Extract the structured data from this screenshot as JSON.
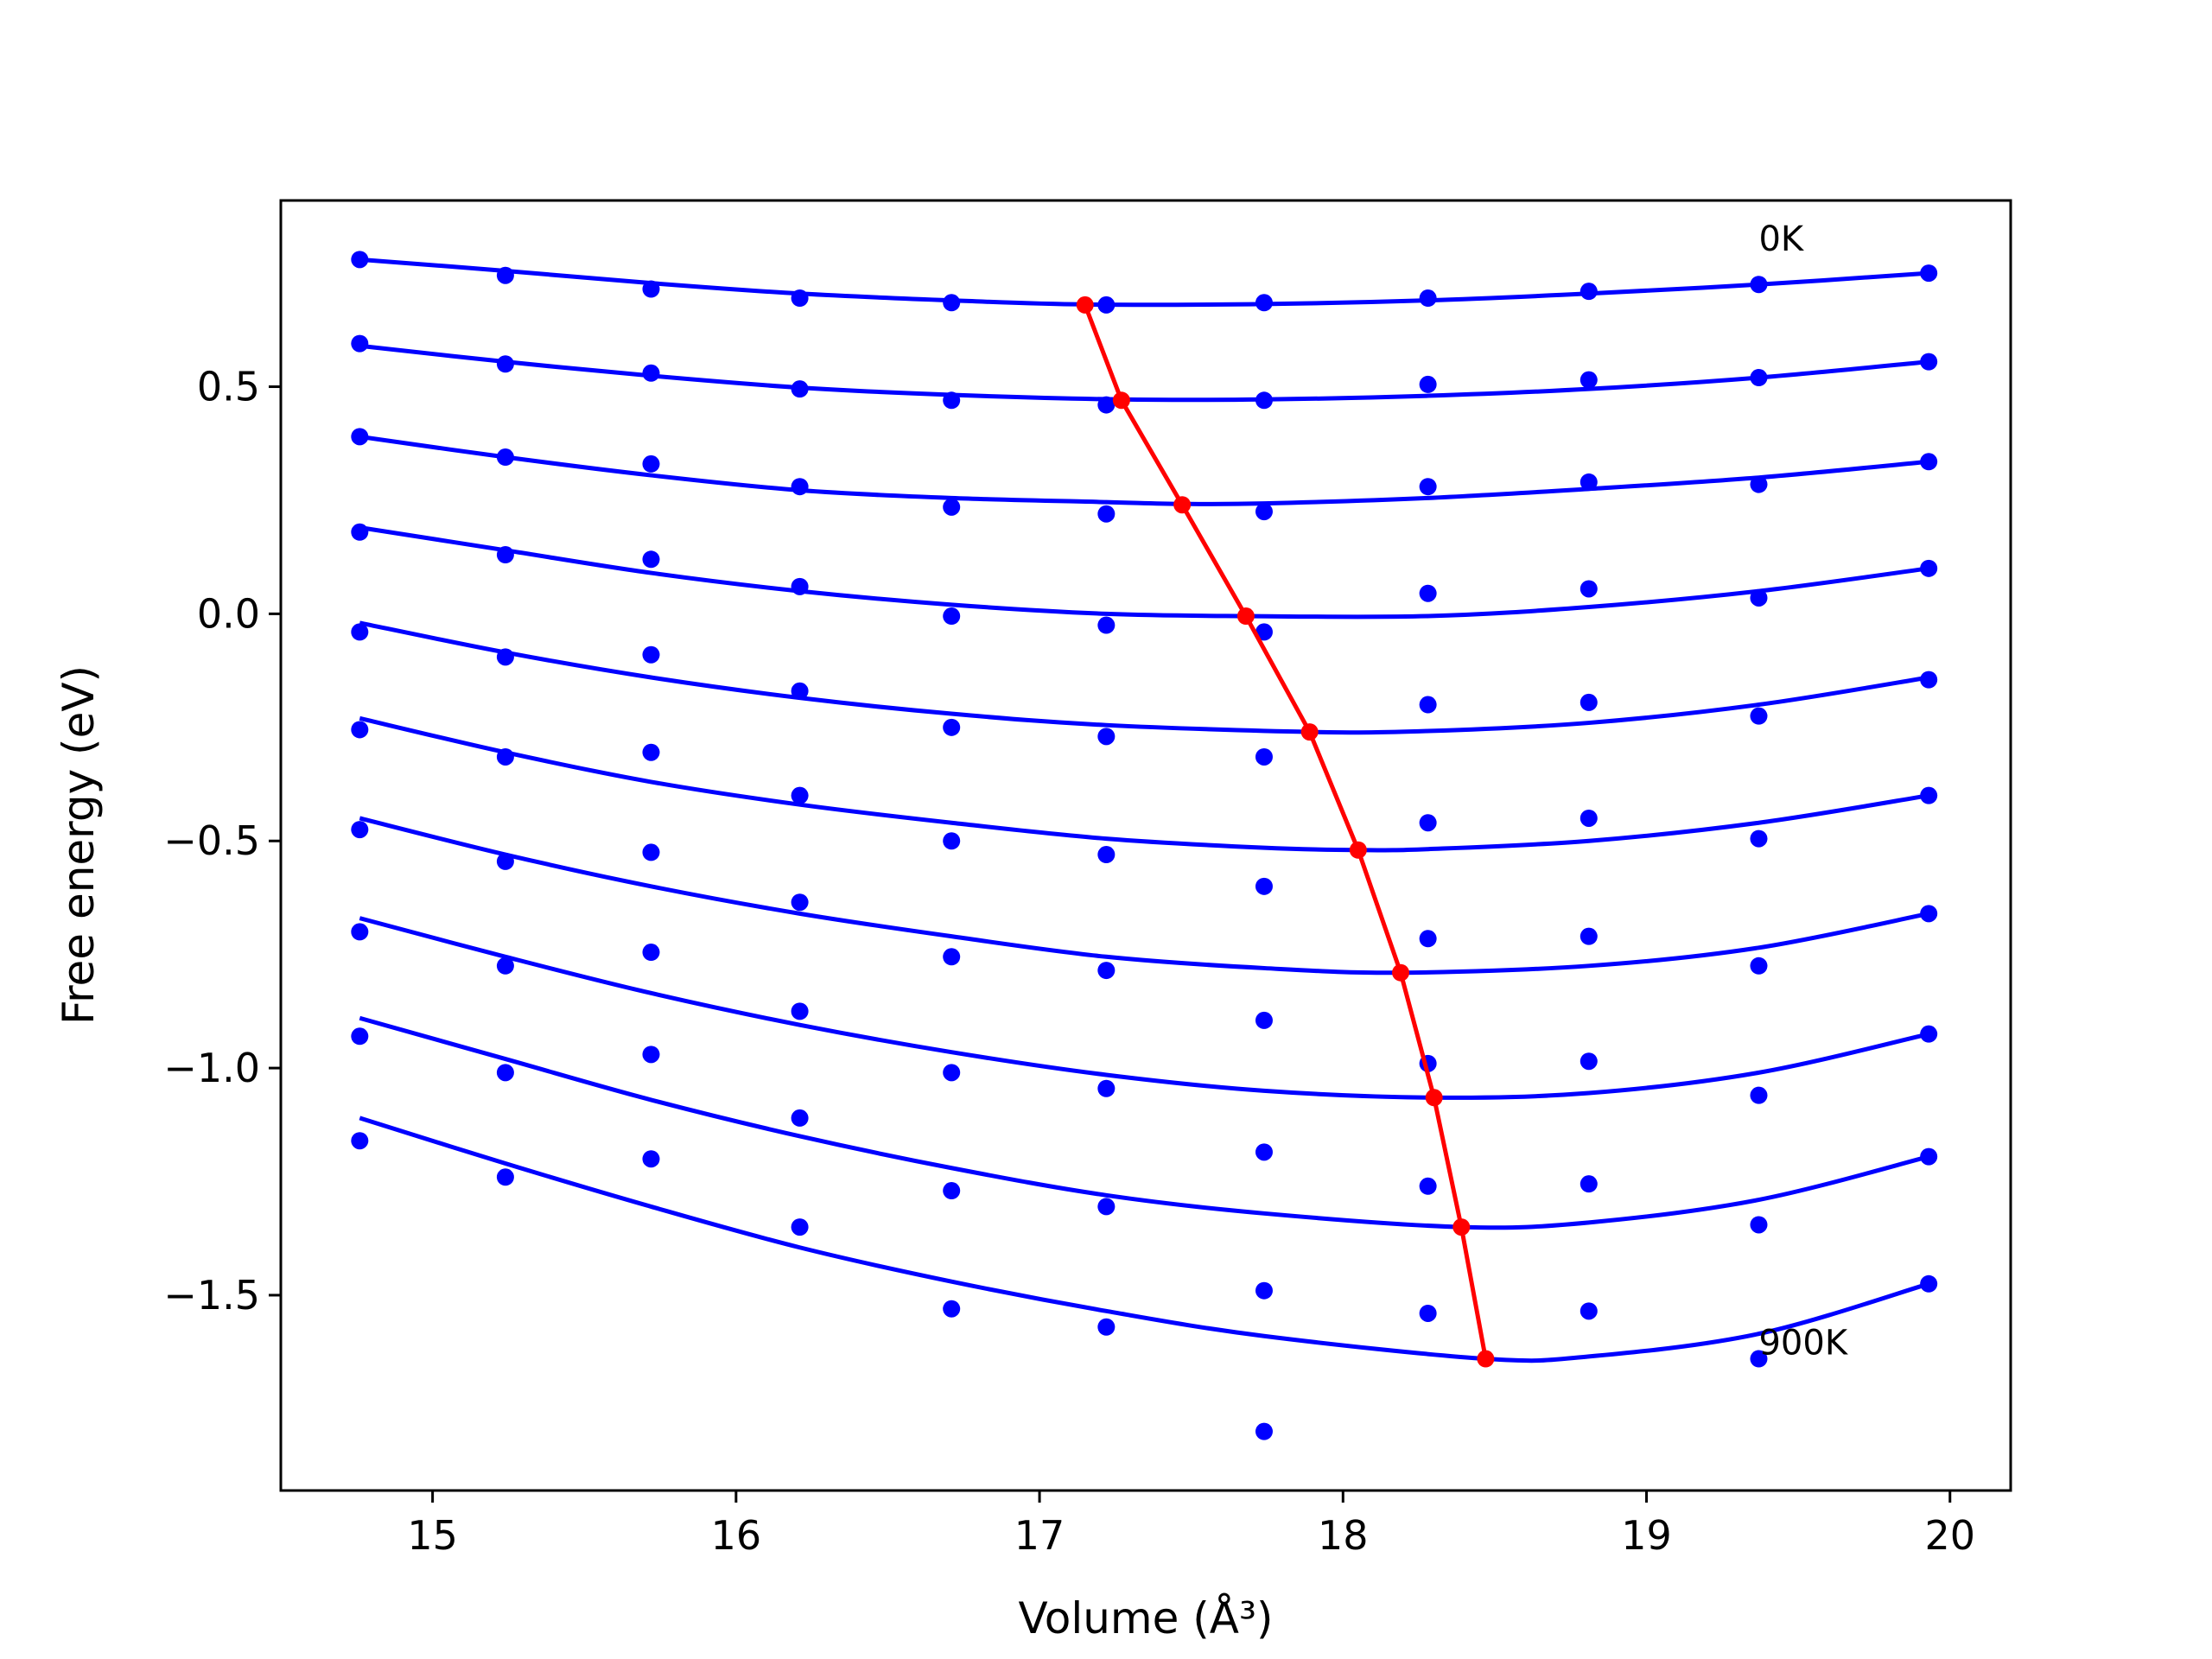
{
  "chart_data": {
    "type": "scatter",
    "title": "",
    "xlabel": "Volume (Å³)",
    "ylabel": "Free energy (eV)",
    "xlim": [
      14.5,
      20.2
    ],
    "ylim": [
      -1.93,
      0.91
    ],
    "xticks": [
      15,
      16,
      17,
      18,
      19,
      20
    ],
    "xtick_labels": [
      "15",
      "16",
      "17",
      "18",
      "19",
      "20"
    ],
    "yticks": [
      -1.5,
      -1.0,
      -0.5,
      0.0,
      0.5
    ],
    "ytick_labels": [
      "−1.5",
      "−1.0",
      "−0.5",
      "0.0",
      "0.5"
    ],
    "grid": false,
    "annotations": [
      {
        "text": "0K",
        "x": 19.37,
        "y": 0.8
      },
      {
        "text": "900K",
        "x": 19.37,
        "y": -1.63
      }
    ],
    "x": [
      14.76,
      15.24,
      15.72,
      16.21,
      16.71,
      17.22,
      17.74,
      18.28,
      18.81,
      19.37,
      19.93
    ],
    "series": [
      {
        "values": [
          0.78,
          0.745,
          0.715,
          0.695,
          0.685,
          0.68,
          0.685,
          0.695,
          0.71,
          0.725,
          0.75
        ],
        "fit": [
          [
            14.76,
            0.78
          ],
          [
            15.24,
            0.755
          ],
          [
            15.72,
            0.728
          ],
          [
            16.21,
            0.705
          ],
          [
            16.71,
            0.69
          ],
          [
            17.15,
            0.681
          ],
          [
            17.74,
            0.682
          ],
          [
            18.28,
            0.69
          ],
          [
            18.81,
            0.705
          ],
          [
            19.37,
            0.725
          ],
          [
            19.93,
            0.75
          ]
        ]
      },
      {
        "values": [
          0.595,
          0.55,
          0.53,
          0.495,
          0.47,
          0.46,
          0.47,
          0.505,
          0.515,
          0.52,
          0.555
        ],
        "fit": [
          [
            14.76,
            0.59
          ],
          [
            15.24,
            0.555
          ],
          [
            15.72,
            0.524
          ],
          [
            16.21,
            0.498
          ],
          [
            16.71,
            0.482
          ],
          [
            17.27,
            0.472
          ],
          [
            17.74,
            0.472
          ],
          [
            18.28,
            0.48
          ],
          [
            18.81,
            0.495
          ],
          [
            19.37,
            0.52
          ],
          [
            19.93,
            0.555
          ]
        ]
      },
      {
        "values": [
          0.39,
          0.345,
          0.33,
          0.28,
          0.235,
          0.22,
          0.225,
          0.28,
          0.29,
          0.285,
          0.335
        ],
        "fit": [
          [
            14.76,
            0.39
          ],
          [
            15.24,
            0.345
          ],
          [
            15.72,
            0.305
          ],
          [
            16.21,
            0.272
          ],
          [
            16.71,
            0.255
          ],
          [
            17.22,
            0.246
          ],
          [
            17.47,
            0.242
          ],
          [
            17.74,
            0.243
          ],
          [
            18.28,
            0.255
          ],
          [
            18.81,
            0.275
          ],
          [
            19.37,
            0.3
          ],
          [
            19.93,
            0.335
          ]
        ]
      },
      {
        "values": [
          0.18,
          0.13,
          0.12,
          0.06,
          -0.005,
          -0.025,
          -0.04,
          0.045,
          0.055,
          0.035,
          0.1
        ],
        "fit": [
          [
            14.76,
            0.19
          ],
          [
            15.24,
            0.14
          ],
          [
            15.72,
            0.09
          ],
          [
            16.21,
            0.05
          ],
          [
            16.71,
            0.02
          ],
          [
            17.22,
            0.0
          ],
          [
            17.68,
            -0.005
          ],
          [
            18.28,
            -0.005
          ],
          [
            18.81,
            0.015
          ],
          [
            19.37,
            0.05
          ],
          [
            19.93,
            0.1
          ]
        ]
      },
      {
        "values": [
          -0.04,
          -0.095,
          -0.09,
          -0.17,
          -0.25,
          -0.27,
          -0.315,
          -0.2,
          -0.195,
          -0.225,
          -0.145
        ],
        "fit": [
          [
            14.76,
            -0.02
          ],
          [
            15.24,
            -0.085
          ],
          [
            15.72,
            -0.14
          ],
          [
            16.21,
            -0.185
          ],
          [
            16.71,
            -0.22
          ],
          [
            17.22,
            -0.245
          ],
          [
            17.89,
            -0.26
          ],
          [
            18.28,
            -0.258
          ],
          [
            18.81,
            -0.24
          ],
          [
            19.37,
            -0.2
          ],
          [
            19.93,
            -0.14
          ]
        ]
      },
      {
        "values": [
          -0.255,
          -0.315,
          -0.305,
          -0.4,
          -0.5,
          -0.53,
          -0.6,
          -0.46,
          -0.45,
          -0.495,
          -0.4
        ],
        "fit": [
          [
            14.76,
            -0.23
          ],
          [
            15.24,
            -0.305
          ],
          [
            15.72,
            -0.37
          ],
          [
            16.21,
            -0.42
          ],
          [
            16.71,
            -0.46
          ],
          [
            17.22,
            -0.495
          ],
          [
            17.74,
            -0.515
          ],
          [
            18.05,
            -0.52
          ],
          [
            18.28,
            -0.518
          ],
          [
            18.81,
            -0.5
          ],
          [
            19.37,
            -0.46
          ],
          [
            19.93,
            -0.4
          ]
        ]
      },
      {
        "values": [
          -0.475,
          -0.545,
          -0.525,
          -0.635,
          -0.755,
          -0.785,
          -0.895,
          -0.715,
          -0.71,
          -0.775,
          -0.66
        ],
        "fit": [
          [
            14.76,
            -0.45
          ],
          [
            15.24,
            -0.53
          ],
          [
            15.72,
            -0.6
          ],
          [
            16.21,
            -0.66
          ],
          [
            16.71,
            -0.71
          ],
          [
            17.22,
            -0.755
          ],
          [
            17.74,
            -0.78
          ],
          [
            18.19,
            -0.79
          ],
          [
            18.81,
            -0.775
          ],
          [
            19.37,
            -0.735
          ],
          [
            19.93,
            -0.66
          ]
        ]
      },
      {
        "values": [
          -0.7,
          -0.775,
          -0.745,
          -0.875,
          -1.01,
          -1.045,
          -1.185,
          -0.99,
          -0.985,
          -1.06,
          -0.925
        ],
        "fit": [
          [
            14.76,
            -0.67
          ],
          [
            15.24,
            -0.755
          ],
          [
            15.72,
            -0.835
          ],
          [
            16.21,
            -0.905
          ],
          [
            16.71,
            -0.965
          ],
          [
            17.22,
            -1.015
          ],
          [
            17.74,
            -1.05
          ],
          [
            18.3,
            -1.065
          ],
          [
            18.81,
            -1.055
          ],
          [
            19.37,
            -1.01
          ],
          [
            19.93,
            -0.925
          ]
        ]
      },
      {
        "values": [
          -0.93,
          -1.01,
          -0.97,
          -1.11,
          -1.27,
          -1.305,
          -1.49,
          -1.26,
          -1.255,
          -1.345,
          -1.195
        ],
        "fit": [
          [
            14.76,
            -0.89
          ],
          [
            15.24,
            -0.98
          ],
          [
            15.72,
            -1.07
          ],
          [
            16.21,
            -1.15
          ],
          [
            16.71,
            -1.22
          ],
          [
            17.22,
            -1.28
          ],
          [
            17.74,
            -1.32
          ],
          [
            18.39,
            -1.35
          ],
          [
            18.81,
            -1.34
          ],
          [
            19.37,
            -1.29
          ],
          [
            19.93,
            -1.195
          ]
        ]
      },
      {
        "values": [
          -1.16,
          -1.24,
          -1.2,
          -1.35,
          -1.53,
          -1.57,
          -1.8,
          -1.54,
          -1.535,
          -1.64,
          -1.475
        ],
        "fit": [
          [
            14.76,
            -1.11
          ],
          [
            15.24,
            -1.21
          ],
          [
            15.72,
            -1.305
          ],
          [
            16.21,
            -1.395
          ],
          [
            16.71,
            -1.47
          ],
          [
            17.22,
            -1.535
          ],
          [
            17.74,
            -1.59
          ],
          [
            18.47,
            -1.64
          ],
          [
            18.81,
            -1.635
          ],
          [
            19.37,
            -1.585
          ],
          [
            19.93,
            -1.475
          ]
        ]
      }
    ],
    "minima": {
      "x": [
        17.15,
        17.27,
        17.47,
        17.68,
        17.89,
        18.05,
        18.19,
        18.3,
        18.39,
        18.47
      ],
      "y": [
        0.68,
        0.47,
        0.24,
        -0.005,
        -0.26,
        -0.52,
        -0.79,
        -1.065,
        -1.35,
        -1.64
      ]
    },
    "colors": {
      "series": "#0000ff",
      "minima": "#ff0000"
    }
  }
}
